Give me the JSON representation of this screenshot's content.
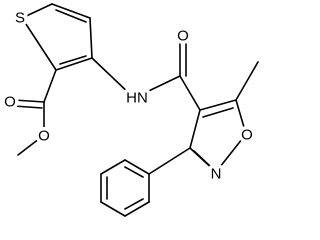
{
  "atoms": [
    {
      "label": "S"
    },
    {
      "label": "O"
    },
    {
      "label": "O"
    },
    {
      "label": "HN"
    },
    {
      "label": "O"
    },
    {
      "label": "O"
    },
    {
      "label": "N"
    }
  ]
}
